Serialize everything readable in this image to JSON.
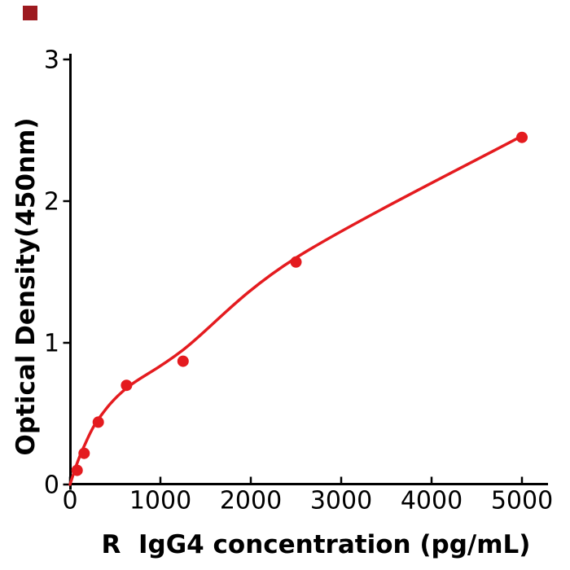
{
  "figure": {
    "background": "#ffffff",
    "corner_marker_color": "#9d1a1f"
  },
  "chart_data": {
    "type": "scatter",
    "title": "",
    "xlabel": "R  IgG4 concentration (pg/mL)",
    "ylabel": "Optical Density(450nm)",
    "x_tick_labels": [
      "0",
      "1000",
      "2000",
      "3000",
      "4000",
      "5000"
    ],
    "x_tick_values": [
      0,
      1000,
      2000,
      3000,
      4000,
      5000
    ],
    "y_tick_labels": [
      "0",
      "1",
      "2",
      "3"
    ],
    "y_tick_values": [
      0,
      1,
      2,
      3
    ],
    "xlim": [
      0,
      5290
    ],
    "ylim": [
      0,
      3
    ],
    "grid": false,
    "legend": null,
    "axis_color": "#000000",
    "marker_color": "#e41b1f",
    "line_color": "#e41b1f",
    "points": {
      "x": [
        78.125,
        156.25,
        312.5,
        625,
        1250,
        2500,
        5000
      ],
      "y": [
        0.1,
        0.22,
        0.44,
        0.7,
        0.87,
        1.57,
        2.45
      ]
    },
    "trendline": {
      "type": "smooth-fit",
      "x": [
        0,
        78,
        156,
        312,
        625,
        1250,
        2500,
        5000
      ],
      "y": [
        0,
        0.15,
        0.27,
        0.46,
        0.68,
        0.95,
        1.6,
        2.46
      ]
    }
  }
}
